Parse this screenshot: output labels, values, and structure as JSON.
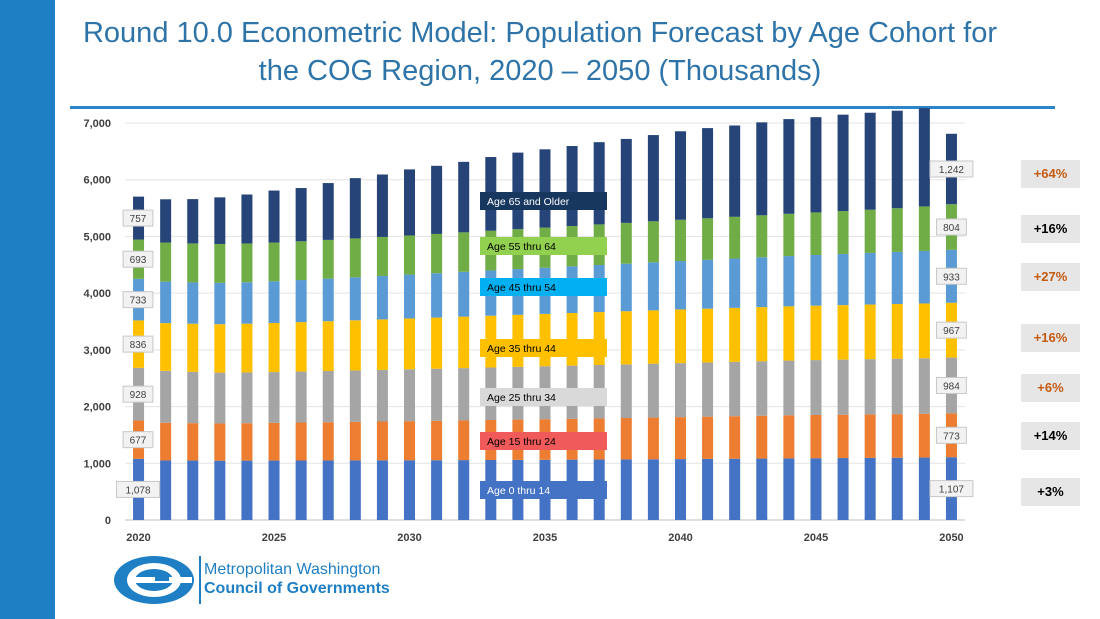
{
  "title": "Round 10.0 Econometric Model: Population Forecast by Age Cohort for the COG Region, 2020 – 2050 (Thousands)",
  "logo": {
    "line1": "Metropolitan Washington",
    "line2": "Council of Governments"
  },
  "colors": {
    "left_bar": "#1f7fc4",
    "title": "#2f74a8",
    "orange_text": "#c55a11",
    "black_text": "#000000"
  },
  "chart_data": {
    "type": "bar",
    "stacked": true,
    "x": [
      2020,
      2021,
      2022,
      2023,
      2024,
      2025,
      2026,
      2027,
      2028,
      2029,
      2030,
      2031,
      2032,
      2033,
      2034,
      2035,
      2036,
      2037,
      2038,
      2039,
      2040,
      2041,
      2042,
      2043,
      2044,
      2045,
      2046,
      2047,
      2048,
      2049,
      2050
    ],
    "ylim": [
      0,
      7000
    ],
    "yticks": [
      0,
      1000,
      2000,
      3000,
      4000,
      5000,
      6000,
      7000
    ],
    "ytick_labels": [
      "0",
      "1,000",
      "2,000",
      "3,000",
      "4,000",
      "5,000",
      "6,000",
      "7,000"
    ],
    "xtick_labels": [
      "2020",
      "2025",
      "2030",
      "2035",
      "2040",
      "2045",
      "2050"
    ],
    "xtick_years": [
      2020,
      2025,
      2030,
      2035,
      2040,
      2045,
      2050
    ],
    "grid": true,
    "series": [
      {
        "name": "Age 0 thru 14",
        "color": "#4472c4",
        "label_color": "#ffffff",
        "label_bg": "#4472c4",
        "start": 1078,
        "end": 1107,
        "start_label": "1,078",
        "end_label": "1,107",
        "values": [
          1078,
          1050,
          1048,
          1046,
          1047,
          1048,
          1049,
          1050,
          1051,
          1052,
          1053,
          1054,
          1056,
          1058,
          1060,
          1062,
          1064,
          1066,
          1068,
          1071,
          1074,
          1077,
          1080,
          1083,
          1086,
          1089,
          1092,
          1095,
          1098,
          1101,
          1107
        ]
      },
      {
        "name": "Age 15 thru 24",
        "color": "#ed7d31",
        "label_color": "#000000",
        "label_bg": "#f05a5a",
        "start": 677,
        "end": 773,
        "start_label": "677",
        "end_label": "773",
        "values": [
          677,
          665,
          660,
          655,
          660,
          665,
          670,
          675,
          680,
          685,
          690,
          695,
          700,
          705,
          710,
          715,
          720,
          725,
          730,
          735,
          740,
          745,
          750,
          755,
          760,
          763,
          765,
          767,
          769,
          771,
          773
        ]
      },
      {
        "name": "Age 25 thru 34",
        "color": "#a5a5a5",
        "label_color": "#000000",
        "label_bg": "#d9d9d9",
        "start": 928,
        "end": 984,
        "start_label": "928",
        "end_label": "984",
        "values": [
          928,
          915,
          905,
          898,
          895,
          895,
          898,
          902,
          906,
          910,
          914,
          918,
          922,
          926,
          930,
          934,
          938,
          942,
          946,
          950,
          953,
          956,
          959,
          962,
          965,
          968,
          971,
          974,
          977,
          980,
          984
        ]
      },
      {
        "name": "Age 35 thru 44",
        "color": "#ffc000",
        "label_color": "#000000",
        "label_bg": "#ffc000",
        "start": 836,
        "end": 967,
        "start_label": "836",
        "end_label": "967",
        "values": [
          836,
          842,
          848,
          854,
          860,
          866,
          872,
          878,
          884,
          890,
          896,
          902,
          908,
          913,
          918,
          923,
          928,
          933,
          937,
          941,
          945,
          948,
          951,
          954,
          957,
          959,
          961,
          963,
          965,
          966,
          967
        ]
      },
      {
        "name": "Age 45 thru 54",
        "color": "#5b9bd5",
        "label_color": "#000000",
        "label_bg": "#00b0f0",
        "start": 733,
        "end": 933,
        "start_label": "733",
        "end_label": "933",
        "values": [
          733,
          730,
          728,
          728,
          730,
          735,
          742,
          750,
          758,
          766,
          774,
          782,
          790,
          798,
          806,
          814,
          822,
          830,
          838,
          846,
          854,
          862,
          870,
          878,
          886,
          894,
          902,
          910,
          918,
          926,
          933
        ]
      },
      {
        "name": "Age 55 thru 64",
        "color": "#70ad47",
        "label_color": "#000000",
        "label_bg": "#92d050",
        "start": 693,
        "end": 804,
        "start_label": "693",
        "end_label": "804",
        "values": [
          693,
          690,
          688,
          686,
          684,
          683,
          683,
          684,
          686,
          688,
          690,
          693,
          696,
          700,
          704,
          708,
          712,
          716,
          720,
          724,
          728,
          732,
          736,
          740,
          745,
          750,
          756,
          762,
          770,
          785,
          804
        ]
      },
      {
        "name": "Age 65 and Older",
        "color": "#264478",
        "label_color": "#ffffff",
        "label_bg": "#17375e",
        "start": 757,
        "end": 1242,
        "start_label": "757",
        "end_label": "1,242",
        "values": [
          757,
          763,
          781,
          822,
          863,
          917,
          939,
          1002,
          1063,
          1101,
          1165,
          1201,
          1243,
          1300,
          1350,
          1380,
          1410,
          1450,
          1480,
          1520,
          1560,
          1590,
          1610,
          1640,
          1670,
          1680,
          1700,
          1710,
          1720,
          1733,
          1242
        ]
      }
    ],
    "changes": [
      {
        "series": "Age 65 and Older",
        "text": "+64%",
        "color": "#c55a11"
      },
      {
        "series": "Age 55 thru 64",
        "text": "+16%",
        "color": "#000000"
      },
      {
        "series": "Age 45 thru 54",
        "text": "+27%",
        "color": "#c55a11"
      },
      {
        "series": "Age 35 thru 44",
        "text": "+16%",
        "color": "#c55a11"
      },
      {
        "series": "Age 25 thru 34",
        "text": "+6%",
        "color": "#c55a11"
      },
      {
        "series": "Age 15 thru 24",
        "text": "+14%",
        "color": "#000000"
      },
      {
        "series": "Age 0 thru 14",
        "text": "+3%",
        "color": "#000000"
      }
    ]
  }
}
